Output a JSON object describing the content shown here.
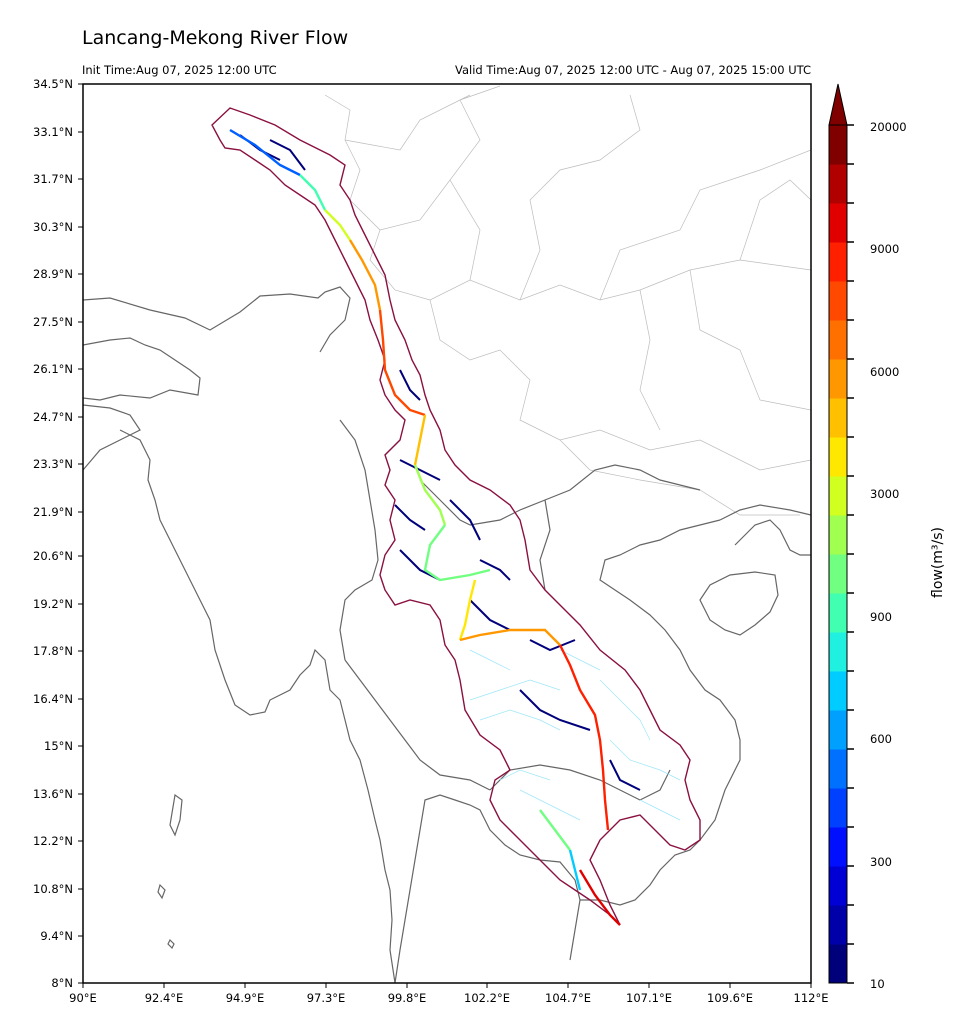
{
  "header": {
    "title": "Lancang-Mekong River Flow",
    "init_time": "Init Time:Aug 07, 2025 12:00 UTC",
    "valid_time": "Valid Time:Aug 07, 2025 12:00 UTC - Aug 07, 2025 15:00 UTC"
  },
  "axes": {
    "lat_labels": [
      "34.5°N",
      "33.1°N",
      "31.7°N",
      "30.3°N",
      "28.9°N",
      "27.5°N",
      "26.1°N",
      "24.7°N",
      "23.3°N",
      "21.9°N",
      "20.6°N",
      "19.2°N",
      "17.8°N",
      "16.4°N",
      "15°N",
      "13.6°N",
      "12.2°N",
      "10.8°N",
      "9.4°N",
      "8°N"
    ],
    "lon_labels": [
      "90°E",
      "92.4°E",
      "94.9°E",
      "97.3°E",
      "99.8°E",
      "102.2°E",
      "104.7°E",
      "107.1°E",
      "109.6°E",
      "112°E"
    ]
  },
  "colorbar": {
    "title": "flow(m³/s)",
    "tick_labels": [
      "20000",
      "9000",
      "6000",
      "3000",
      "900",
      "600",
      "300",
      "10"
    ],
    "colors": [
      "#00007a",
      "#0000a8",
      "#0000d4",
      "#0010ff",
      "#0040ff",
      "#0070ff",
      "#00a0ff",
      "#00ccff",
      "#20f0e0",
      "#40ffb0",
      "#70ff80",
      "#a0ff50",
      "#d0ff20",
      "#ffe800",
      "#ffc000",
      "#ff9800",
      "#ff7000",
      "#ff4800",
      "#ff2000",
      "#e00000",
      "#b00000",
      "#800000"
    ]
  }
}
